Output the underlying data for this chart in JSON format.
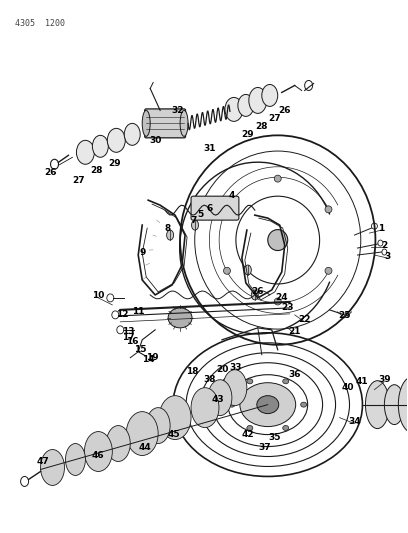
{
  "header_text": "4305  1200",
  "background_color": "#ffffff",
  "line_color": "#1a1a1a",
  "figsize": [
    4.08,
    5.33
  ],
  "dpi": 100,
  "fig_w": 408,
  "fig_h": 533,
  "label_fontsize": 6.5,
  "label_fontweight": "bold"
}
